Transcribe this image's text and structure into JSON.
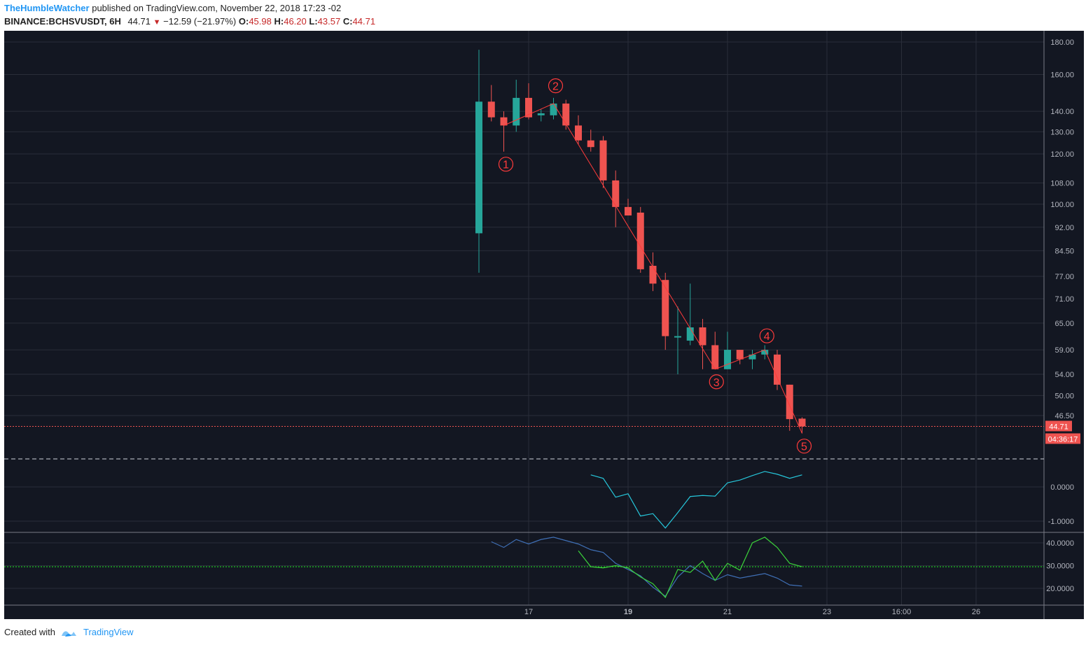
{
  "header": {
    "author": "TheHumbleWatcher",
    "published": "published on TradingView.com, November 22, 2018 17:23 -02",
    "symbol": "BINANCE:BCHSVUSDT, 6H",
    "last": "44.71",
    "change": "−12.59 (−21.97%)",
    "o_label": "O:",
    "o": "45.98",
    "h_label": "H:",
    "h": "46.20",
    "l_label": "L:",
    "l": "43.57",
    "c_label": "C:",
    "c": "44.71"
  },
  "footer": {
    "created": "Created with",
    "brand": "TradingView"
  },
  "colors": {
    "background": "#131722",
    "grid": "#2a2e39",
    "up": "#26a69a",
    "down": "#ef5350",
    "wave": "#ff3b3b",
    "osc1": "#26c6da",
    "osc2_blue": "#3f6fb5",
    "osc2_green": "#3bd23b",
    "guide_green": "#22ee22",
    "price_line": "#ef5350"
  },
  "chart_data": {
    "type": "candlestick",
    "scale": "log",
    "x_labels": [
      {
        "i": 4,
        "text": "17"
      },
      {
        "i": 12,
        "text": "19"
      },
      {
        "i": 20,
        "text": "21"
      },
      {
        "i": 28,
        "text": "23"
      },
      {
        "i": 34,
        "text": "16:00"
      },
      {
        "i": 40,
        "text": "26"
      }
    ],
    "y_ticks": [
      "180.00",
      "160.00",
      "140.00",
      "130.00",
      "120.00",
      "108.00",
      "100.00",
      "92.00",
      "84.50",
      "77.00",
      "71.00",
      "65.00",
      "59.00",
      "54.00",
      "50.00",
      "46.50"
    ],
    "candles": [
      {
        "o": 90,
        "h": 175,
        "l": 78,
        "c": 145
      },
      {
        "o": 145,
        "h": 154,
        "l": 135,
        "c": 137
      },
      {
        "o": 137,
        "h": 140,
        "l": 121,
        "c": 133
      },
      {
        "o": 133,
        "h": 157,
        "l": 130,
        "c": 147
      },
      {
        "o": 147,
        "h": 155,
        "l": 136,
        "c": 137
      },
      {
        "o": 138,
        "h": 141,
        "l": 135,
        "c": 139
      },
      {
        "o": 138,
        "h": 147,
        "l": 136,
        "c": 144
      },
      {
        "o": 144,
        "h": 146,
        "l": 131,
        "c": 133
      },
      {
        "o": 133,
        "h": 138,
        "l": 124,
        "c": 126
      },
      {
        "o": 126,
        "h": 131,
        "l": 121,
        "c": 123
      },
      {
        "o": 126,
        "h": 128,
        "l": 106,
        "c": 109
      },
      {
        "o": 109,
        "h": 113,
        "l": 92,
        "c": 99
      },
      {
        "o": 99,
        "h": 102,
        "l": 96,
        "c": 96
      },
      {
        "o": 97,
        "h": 99,
        "l": 78,
        "c": 79
      },
      {
        "o": 80,
        "h": 84,
        "l": 73,
        "c": 75
      },
      {
        "o": 76,
        "h": 78,
        "l": 59,
        "c": 62
      },
      {
        "o": 62,
        "h": 69,
        "l": 54,
        "c": 62
      },
      {
        "o": 61,
        "h": 75,
        "l": 60,
        "c": 64
      },
      {
        "o": 64,
        "h": 66,
        "l": 55,
        "c": 60
      },
      {
        "o": 60,
        "h": 63,
        "l": 55,
        "c": 55
      },
      {
        "o": 55,
        "h": 63,
        "l": 55,
        "c": 59
      },
      {
        "o": 59,
        "h": 59,
        "l": 56,
        "c": 57
      },
      {
        "o": 57,
        "h": 59,
        "l": 55,
        "c": 58
      },
      {
        "o": 58,
        "h": 60,
        "l": 57,
        "c": 59
      },
      {
        "o": 58,
        "h": 59,
        "l": 51,
        "c": 52
      },
      {
        "o": 52,
        "h": 52,
        "l": 44,
        "c": 45.9
      },
      {
        "o": 45.98,
        "h": 46.2,
        "l": 43.57,
        "c": 44.71
      }
    ],
    "wave_points": [
      {
        "i": 2,
        "v": 133
      },
      {
        "i": 6,
        "v": 144
      },
      {
        "i": 19,
        "v": 55
      },
      {
        "i": 23,
        "v": 59
      },
      {
        "i": 26,
        "v": 43.6
      }
    ],
    "wave_labels": [
      {
        "i": 2,
        "v": 121,
        "text": "1",
        "pos": "below"
      },
      {
        "i": 6,
        "v": 146,
        "text": "2",
        "pos": "above"
      },
      {
        "i": 19,
        "v": 55,
        "text": "3",
        "pos": "below"
      },
      {
        "i": 23,
        "v": 59,
        "text": "4",
        "pos": "above"
      },
      {
        "i": 26,
        "v": 43.57,
        "text": "5",
        "pos": "below"
      }
    ],
    "price_label": "44.71",
    "countdown": "04:36:17",
    "osc1": {
      "y_ticks": [
        "0.0000",
        "-1.0000"
      ],
      "start": 9,
      "values": [
        0.35,
        0.25,
        -0.3,
        -0.2,
        -0.85,
        -0.78,
        -1.2,
        -0.75,
        -0.28,
        -0.25,
        -0.27,
        0.12,
        0.2,
        0.33,
        0.45,
        0.37,
        0.25,
        0.35
      ]
    },
    "osc2": {
      "y_ticks": [
        "40.0000",
        "30.0000",
        "20.0000"
      ],
      "guide": 29.5,
      "blue_start": 1,
      "blue": [
        40.5,
        38,
        41.5,
        39.5,
        41.5,
        42.5,
        41,
        39.5,
        37,
        35.8,
        31,
        28.3,
        25.5,
        20.5,
        16.5,
        25,
        30,
        26.5,
        23.5,
        26,
        24.5,
        25.5,
        26.5,
        24.5,
        21.5,
        21
      ],
      "green_start": 8,
      "green": [
        36.5,
        29.5,
        29,
        30,
        29,
        25,
        22,
        16,
        28.3,
        27,
        32,
        23.5,
        31,
        28,
        40,
        42.5,
        38,
        31,
        29.5
      ]
    }
  }
}
